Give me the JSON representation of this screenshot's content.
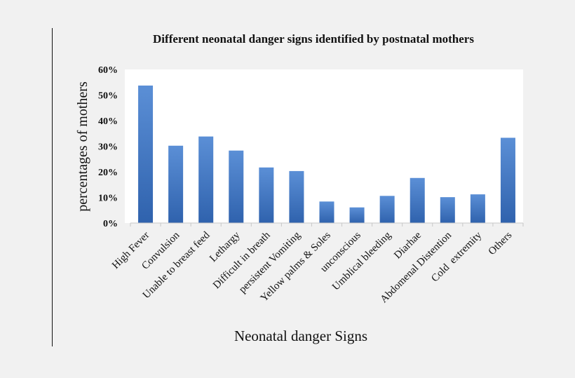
{
  "chart_data": {
    "type": "bar",
    "title": "Different neonatal danger signs identified by postnatal mothers",
    "xlabel": "Neonatal danger Signs",
    "ylabel": "percentages of mothers",
    "ylim": [
      0,
      60
    ],
    "yticks": [
      "0%",
      "10%",
      "20%",
      "30%",
      "40%",
      "50%",
      "60%"
    ],
    "grid": false,
    "categories": [
      "High Fever",
      "Convulsion",
      "Unable to breast feed",
      "Lethargy",
      "Difficult in breath",
      "persistent Vomiting",
      "Yellow palms & Soles",
      "unconscious",
      "Umblical bleeding",
      "Diarhae",
      "Abdomenal Distention",
      "Cold  extremity",
      "Others"
    ],
    "values": [
      53.7,
      30.2,
      33.8,
      28.3,
      21.7,
      20.3,
      8.4,
      6.1,
      10.6,
      17.6,
      10.1,
      11.2,
      33.3
    ],
    "bar_color_light": "#5b8fd6",
    "bar_color_dark": "#2f62ad"
  }
}
